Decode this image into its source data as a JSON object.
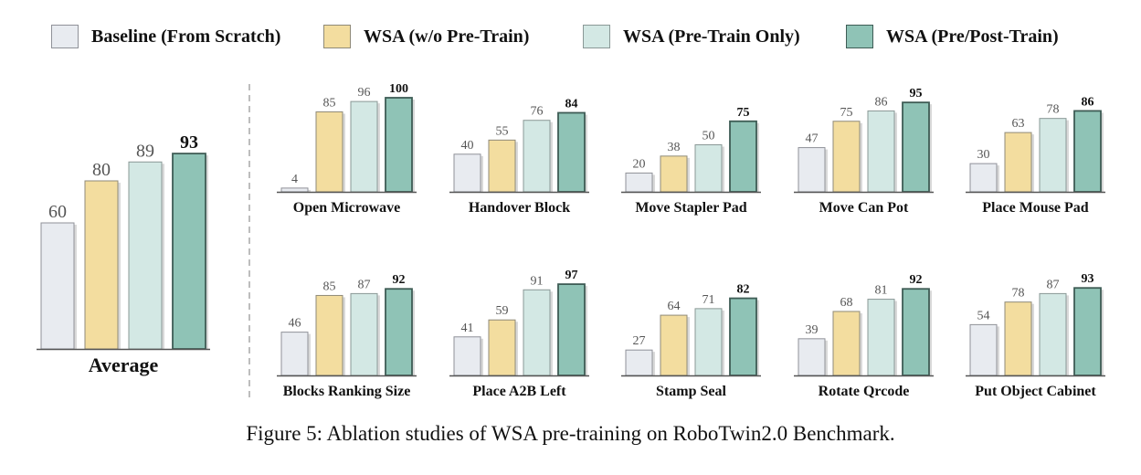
{
  "legend": {
    "items": [
      {
        "label": "Baseline (From Scratch)",
        "color": "#e8ebf0",
        "border": "#8f9198"
      },
      {
        "label": "WSA (w/o Pre-Train)",
        "color": "#f3dd9f",
        "border": "#8f8a78"
      },
      {
        "label": "WSA (Pre-Train Only)",
        "color": "#d3e8e4",
        "border": "#8a9896"
      },
      {
        "label": "WSA (Pre/Post-Train)",
        "color": "#8fc3b6",
        "border": "#3e5c55"
      }
    ]
  },
  "chart_data": [
    {
      "type": "bar",
      "xlabel": "Average",
      "values": [
        60,
        80,
        89,
        93
      ],
      "highlight_index": 3
    },
    {
      "type": "bar",
      "xlabel": "Open Microwave",
      "values": [
        4,
        85,
        96,
        100
      ],
      "highlight_index": 3
    },
    {
      "type": "bar",
      "xlabel": "Handover Block",
      "values": [
        40,
        55,
        76,
        84
      ],
      "highlight_index": 3
    },
    {
      "type": "bar",
      "xlabel": "Move Stapler Pad",
      "values": [
        20,
        38,
        50,
        75
      ],
      "highlight_index": 3
    },
    {
      "type": "bar",
      "xlabel": "Move Can Pot",
      "values": [
        47,
        75,
        86,
        95
      ],
      "highlight_index": 3
    },
    {
      "type": "bar",
      "xlabel": "Place Mouse Pad",
      "values": [
        30,
        63,
        78,
        86
      ],
      "highlight_index": 3
    },
    {
      "type": "bar",
      "xlabel": "Blocks Ranking Size",
      "values": [
        46,
        85,
        87,
        92
      ],
      "highlight_index": 3
    },
    {
      "type": "bar",
      "xlabel": "Place A2B Left",
      "values": [
        41,
        59,
        91,
        97
      ],
      "highlight_index": 3
    },
    {
      "type": "bar",
      "xlabel": "Stamp Seal",
      "values": [
        27,
        64,
        71,
        82
      ],
      "highlight_index": 3
    },
    {
      "type": "bar",
      "xlabel": "Rotate Qrcode",
      "values": [
        39,
        68,
        81,
        92
      ],
      "highlight_index": 3
    },
    {
      "type": "bar",
      "xlabel": "Put Object Cabinet",
      "values": [
        54,
        78,
        87,
        93
      ],
      "highlight_index": 3
    }
  ],
  "caption": "Figure 5: Ablation studies of WSA pre-training on RoboTwin2.0 Benchmark."
}
